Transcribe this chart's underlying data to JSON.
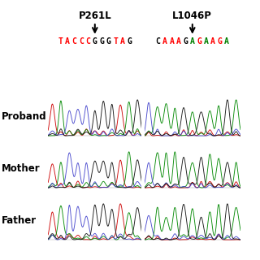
{
  "mutation_labels": [
    "P261L",
    "L1046P"
  ],
  "seq_left": "TACCCGGGTAG",
  "seq_right": "CAAAGAGAAGA",
  "seq_left_colors": [
    "red",
    "red",
    "red",
    "red",
    "red",
    "black",
    "black",
    "black",
    "red",
    "red",
    "black"
  ],
  "seq_right_colors": [
    "black",
    "red",
    "red",
    "red",
    "black",
    "green",
    "red",
    "green",
    "red",
    "red",
    "green"
  ],
  "row_labels": [
    "Proband",
    "Mother",
    "Father"
  ],
  "bg_color": "#ffffff",
  "label_fontsize": 8.5,
  "seq_fontsize": 7,
  "mutation_fontsize": 8.5
}
